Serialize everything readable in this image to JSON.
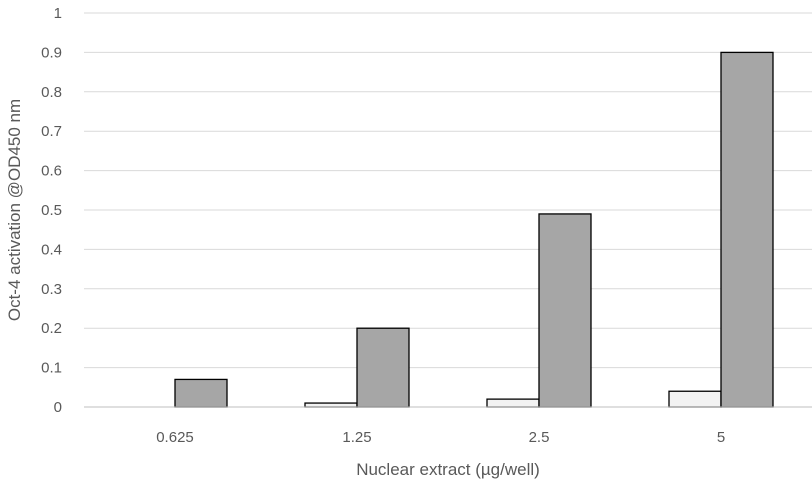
{
  "chart_data": {
    "type": "bar",
    "title": "",
    "xlabel": "Nuclear extract (µg/well)",
    "ylabel": "Oct-4 activation @OD450 nm",
    "categories": [
      "0.625",
      "1.25",
      "2.5",
      "5"
    ],
    "series": [
      {
        "values": [
          0.0,
          0.01,
          0.02,
          0.04
        ],
        "color": "#f2f2f2"
      },
      {
        "values": [
          0.07,
          0.2,
          0.49,
          0.9
        ],
        "color": "#a6a6a6"
      }
    ],
    "ylim": [
      0,
      1
    ],
    "yticks": [
      "0",
      "0.1",
      "0.2",
      "0.3",
      "0.4",
      "0.5",
      "0.6",
      "0.7",
      "0.8",
      "0.9",
      "1"
    ],
    "grid": true,
    "legend": "none"
  }
}
